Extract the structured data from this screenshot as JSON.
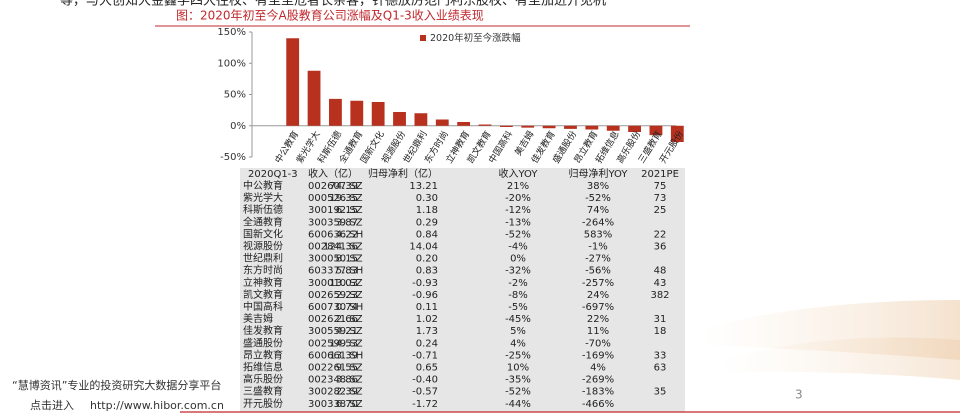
{
  "doc": {
    "top_text": "等，与大创知大金鑫学四大往校、有至至危者长亲客，针德放厉范门利东股权、有至加进开见机",
    "caption": "图：2020年初至今A股教育公司涨幅及Q1-3收入业绩表现",
    "footer_brand": "“慧博资讯”专业的投资研究大数据分享平台",
    "footer_link_prefix": "点击进入",
    "footer_url": "http://www.hibor.com.cn",
    "page_number": "3"
  },
  "chart_data": {
    "type": "bar",
    "categories": [
      "中公教育",
      "紫光学大",
      "科斯伍德",
      "全通教育",
      "国新文化",
      "视源股份",
      "世纪鼎利",
      "东方时尚",
      "立神教育",
      "凯文教育",
      "中国高科",
      "美吉姆",
      "佳发教育",
      "盛通股份",
      "昂立教育",
      "拓维信息",
      "高乐股份",
      "三盛教育",
      "开元股份"
    ],
    "series": [
      {
        "name": "2020年初至今涨跌幅",
        "color": "#b8311f",
        "values": [
          140,
          88,
          43,
          40,
          38,
          22,
          20,
          10,
          6,
          2,
          -2,
          -3,
          -4,
          -5,
          -6,
          -8,
          -10,
          -15,
          -26
        ]
      }
    ],
    "ylim": [
      -50,
      150
    ],
    "yticks": [
      {
        "value": 150,
        "label": "150%"
      },
      {
        "value": 100,
        "label": "100%"
      },
      {
        "value": 50,
        "label": "50%"
      },
      {
        "value": 0,
        "label": "0%"
      },
      {
        "value": -50,
        "label": "-50%"
      }
    ],
    "legend": "top"
  },
  "table": {
    "header": [
      "2020Q1-3",
      "收入（亿）",
      "归母净利（亿）",
      "收入YOY",
      "归母净利YOY",
      "2021PE"
    ],
    "rows": [
      [
        "中公教育",
        "002607.SZ",
        "74.39",
        "13.21",
        "21%",
        "38%",
        "75"
      ],
      [
        "紫光学大",
        "000526.SZ",
        "19.35",
        "0.30",
        "-20%",
        "-52%",
        "73"
      ],
      [
        "科斯伍德",
        "300192.SZ",
        "6.15",
        "1.18",
        "-12%",
        "74%",
        "25"
      ],
      [
        "全通教育",
        "300359.SZ",
        "3.87",
        "0.29",
        "-13%",
        "-264%",
        null
      ],
      [
        "国新文化",
        "600636.SH",
        "4.22",
        "0.84",
        "-52%",
        "583%",
        "22"
      ],
      [
        "视源股份",
        "002841.SZ",
        "124.36",
        "14.04",
        "-4%",
        "-1%",
        "36"
      ],
      [
        "世纪鼎利",
        "300050.SZ",
        "8.15",
        "0.20",
        "0%",
        "-27%",
        null
      ],
      [
        "东方时尚",
        "603377.SH",
        "5.83",
        "0.83",
        "-32%",
        "-56%",
        "48"
      ],
      [
        "立神教育",
        "300010.SZ",
        "13.03",
        "-0.93",
        "-2%",
        "-257%",
        "43"
      ],
      [
        "凯文教育",
        "002659.SZ",
        "2.23",
        "-0.96",
        "-8%",
        "24%",
        "382"
      ],
      [
        "中国高科",
        "600730.SH",
        "0.74",
        "0.11",
        "-5%",
        "-697%",
        null
      ],
      [
        "美吉姆",
        "002621.SZ",
        "2.66",
        "1.02",
        "-45%",
        "22%",
        "31"
      ],
      [
        "佳发教育",
        "300559.SZ",
        "4.21",
        "1.73",
        "5%",
        "11%",
        "18"
      ],
      [
        "盛通股份",
        "002599.SZ",
        "14.53",
        "0.24",
        "4%",
        "-70%",
        null
      ],
      [
        "昂立教育",
        "600661.SH",
        "13.39",
        "-0.71",
        "-25%",
        "-169%",
        "33"
      ],
      [
        "拓维信息",
        "002261.SZ",
        "9.55",
        "0.65",
        "10%",
        "4%",
        "63"
      ],
      [
        "高乐股份",
        "002348.SZ",
        "3.86",
        "-0.40",
        "-35%",
        "-269%",
        null
      ],
      [
        "三盛教育",
        "300282.SZ",
        "2.39",
        "-0.57",
        "-52%",
        "-183%",
        "35"
      ],
      [
        "开元股份",
        "300338.SZ",
        "6.70",
        "-1.72",
        "-44%",
        "-466%",
        null
      ]
    ]
  }
}
